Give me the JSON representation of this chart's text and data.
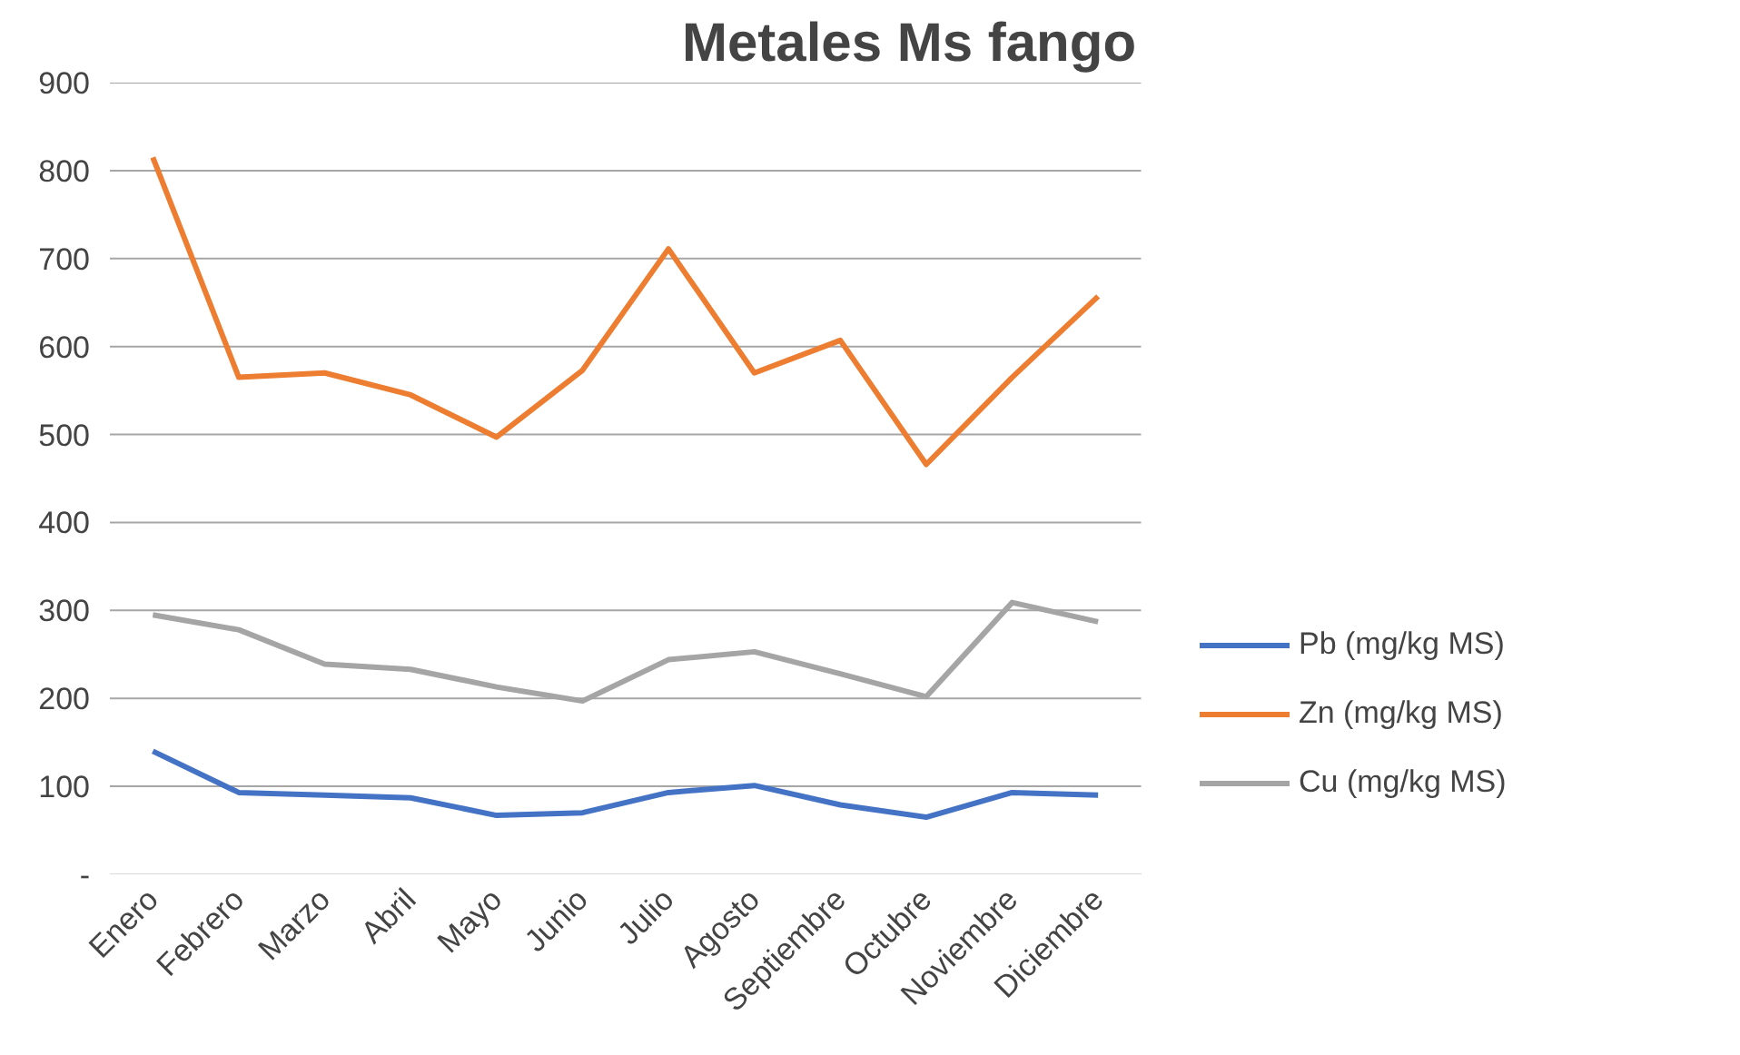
{
  "chart_data": {
    "type": "line",
    "title": "Metales Ms fango",
    "categories": [
      "Enero",
      "Febrero",
      "Marzo",
      "Abril",
      "Mayo",
      "Junio",
      "Julio",
      "Agosto",
      "Septiembre",
      "Octubre",
      "Noviembre",
      "Diciembre"
    ],
    "series": [
      {
        "name": "Pb (mg/kg MS)",
        "color": "#4472c4",
        "values": [
          140,
          93,
          90,
          87,
          67,
          70,
          93,
          101,
          79,
          65,
          93,
          90
        ]
      },
      {
        "name": "Zn (mg/kg MS)",
        "color": "#ed7d31",
        "values": [
          815,
          565,
          570,
          545,
          497,
          573,
          711,
          570,
          607,
          466,
          565,
          657
        ]
      },
      {
        "name": "Cu (mg/kg MS)",
        "color": "#a5a5a5",
        "values": [
          295,
          278,
          239,
          233,
          213,
          197,
          244,
          253,
          228,
          202,
          309,
          287
        ]
      }
    ],
    "ylim": [
      0,
      900
    ],
    "yticks": [
      {
        "value": 0,
        "label": "-"
      },
      100,
      200,
      300,
      400,
      500,
      600,
      700,
      800,
      900
    ],
    "grid": "y",
    "legend": "right",
    "marker": "none",
    "line_style": "solid"
  }
}
